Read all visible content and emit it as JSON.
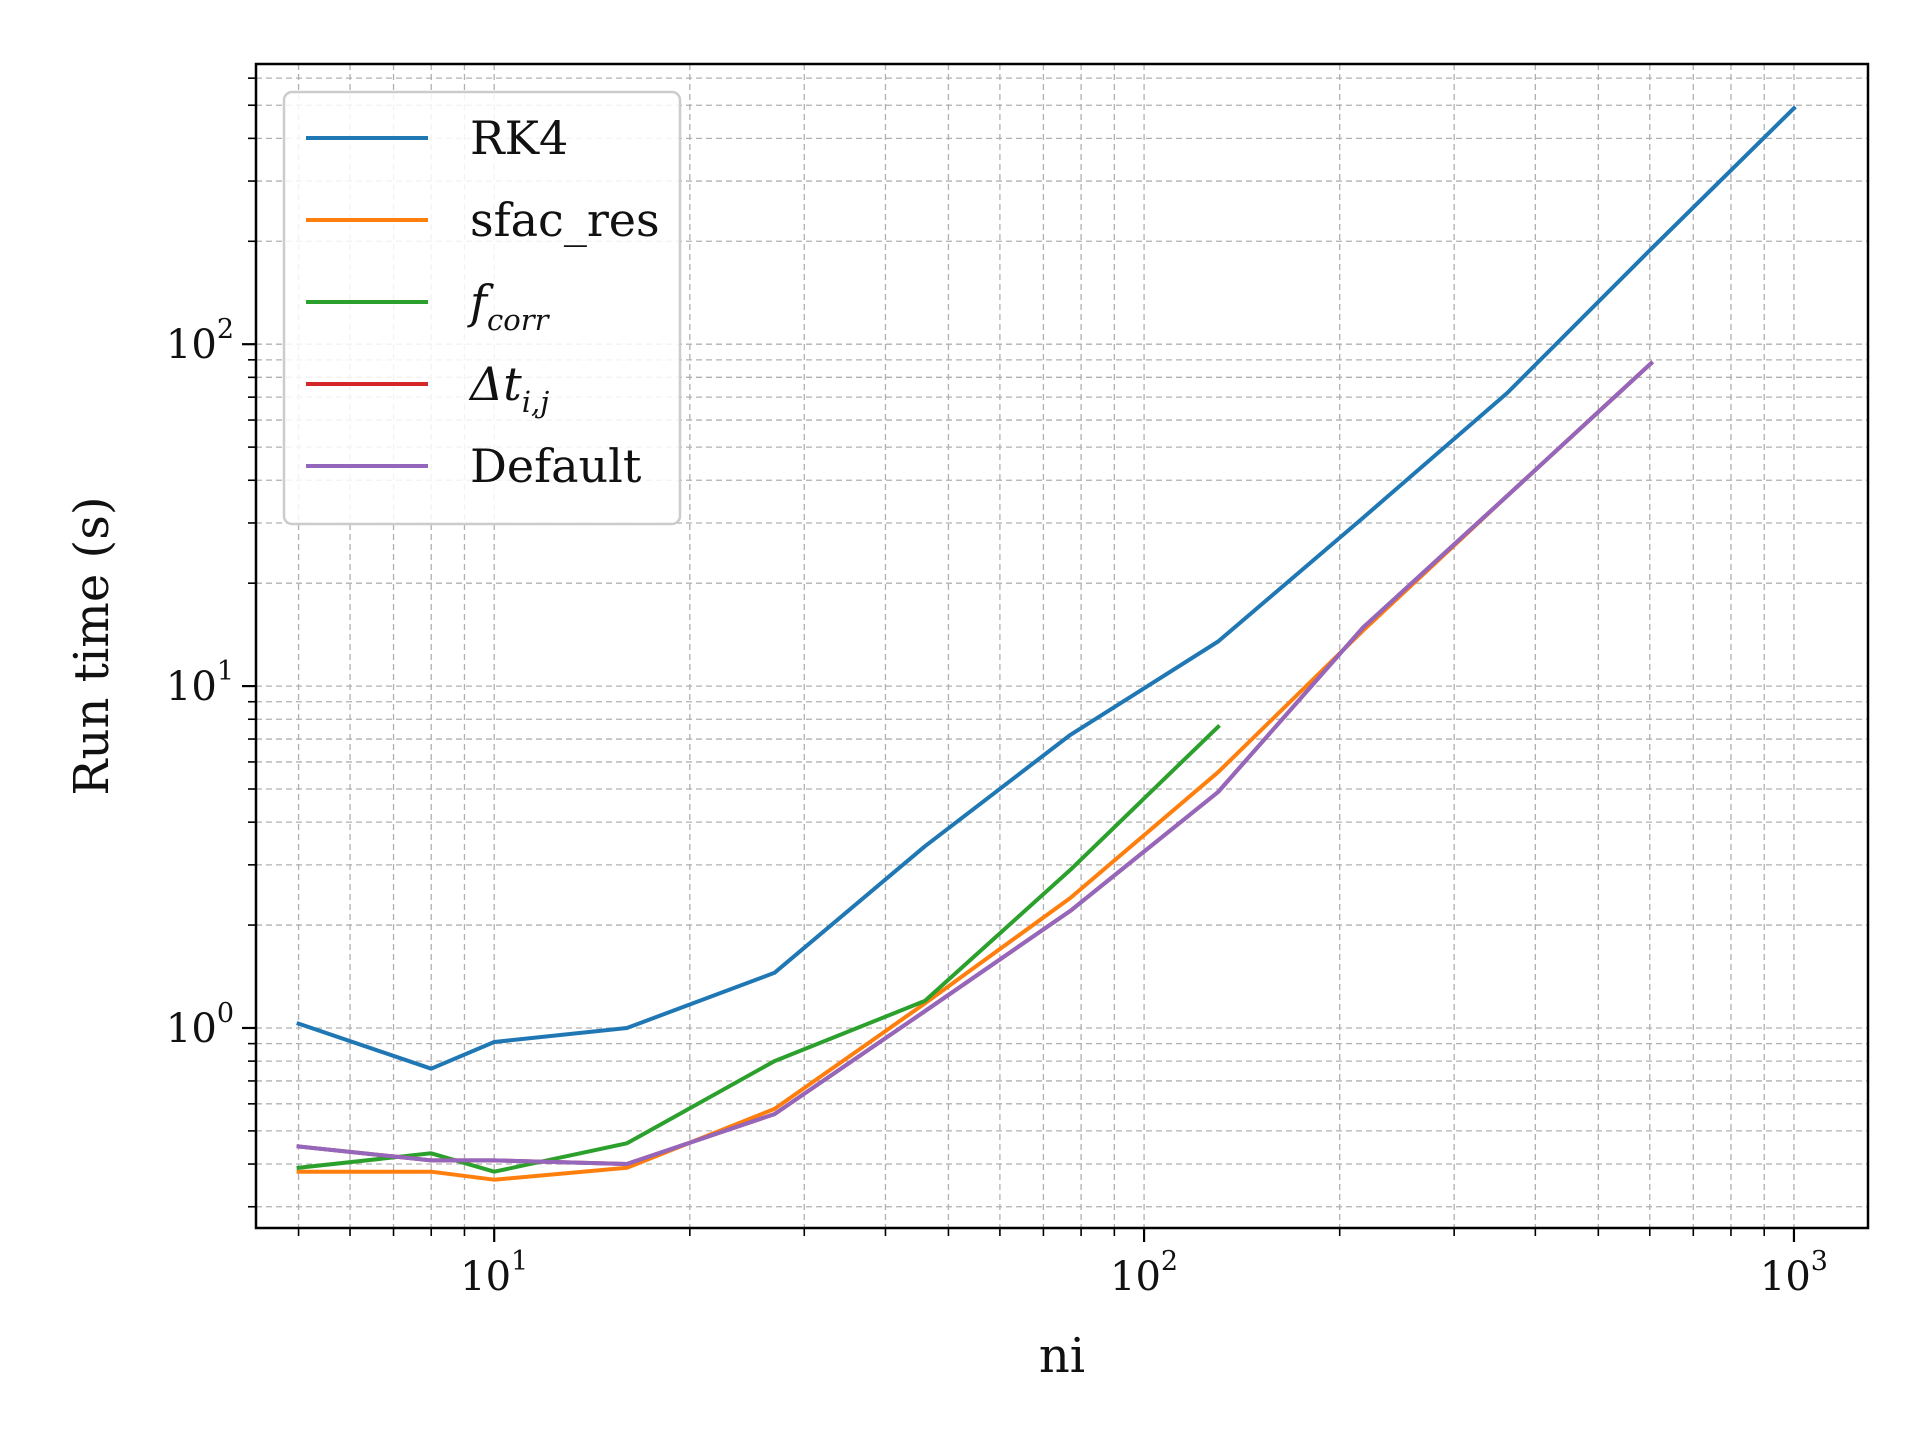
{
  "chart_data": {
    "type": "line",
    "xlabel": "ni",
    "ylabel": "Run time (s)",
    "xscale": "log",
    "yscale": "log",
    "xlim": [
      4.3,
      1300
    ],
    "ylim": [
      0.26,
      660
    ],
    "grid": true,
    "legend": "top-left",
    "x_tick_labels": [
      {
        "value": 10,
        "base": "10",
        "exp": "1"
      },
      {
        "value": 100,
        "base": "10",
        "exp": "2"
      },
      {
        "value": 1000,
        "base": "10",
        "exp": "3"
      }
    ],
    "y_tick_labels": [
      {
        "value": 1,
        "base": "10",
        "exp": "0"
      },
      {
        "value": 10,
        "base": "10",
        "exp": "1"
      },
      {
        "value": 100,
        "base": "10",
        "exp": "2"
      }
    ],
    "series": [
      {
        "name": "RK4",
        "color": "#1f77b4",
        "x": [
          5,
          8,
          10,
          16,
          27,
          46,
          77,
          130,
          217,
          362,
          603,
          1000
        ],
        "y": [
          1.03,
          0.76,
          0.91,
          1.0,
          1.45,
          3.4,
          7.2,
          13.5,
          31,
          72,
          190,
          490
        ]
      },
      {
        "name": "sfac_res",
        "color": "#ff7f0e",
        "x": [
          5,
          8,
          10,
          16,
          27,
          46,
          77,
          130,
          217,
          362,
          603
        ],
        "y": [
          0.38,
          0.38,
          0.36,
          0.39,
          0.58,
          1.18,
          2.4,
          5.6,
          14.5,
          36,
          88
        ]
      },
      {
        "name": "f_corr",
        "label_base": "f",
        "label_sub": "corr",
        "color": "#2ca02c",
        "x": [
          5,
          8,
          10,
          16,
          27,
          46,
          77,
          130
        ],
        "y": [
          0.39,
          0.43,
          0.38,
          0.46,
          0.8,
          1.2,
          2.9,
          7.6
        ]
      },
      {
        "name": "Δt_i,j",
        "label_base": "Δt",
        "label_sub": "i,j",
        "color": "#d62728",
        "x": [
          5,
          8,
          10,
          16,
          27,
          46,
          77,
          130,
          217,
          362,
          603
        ],
        "y": [
          0.45,
          0.41,
          0.41,
          0.4,
          0.56,
          1.12,
          2.2,
          4.9,
          14.8,
          36,
          88
        ]
      },
      {
        "name": "Default",
        "color": "#9467bd",
        "x": [
          5,
          8,
          10,
          16,
          27,
          46,
          77,
          130,
          217,
          362,
          603
        ],
        "y": [
          0.45,
          0.41,
          0.41,
          0.4,
          0.56,
          1.12,
          2.2,
          4.9,
          14.8,
          36,
          88
        ]
      }
    ]
  }
}
